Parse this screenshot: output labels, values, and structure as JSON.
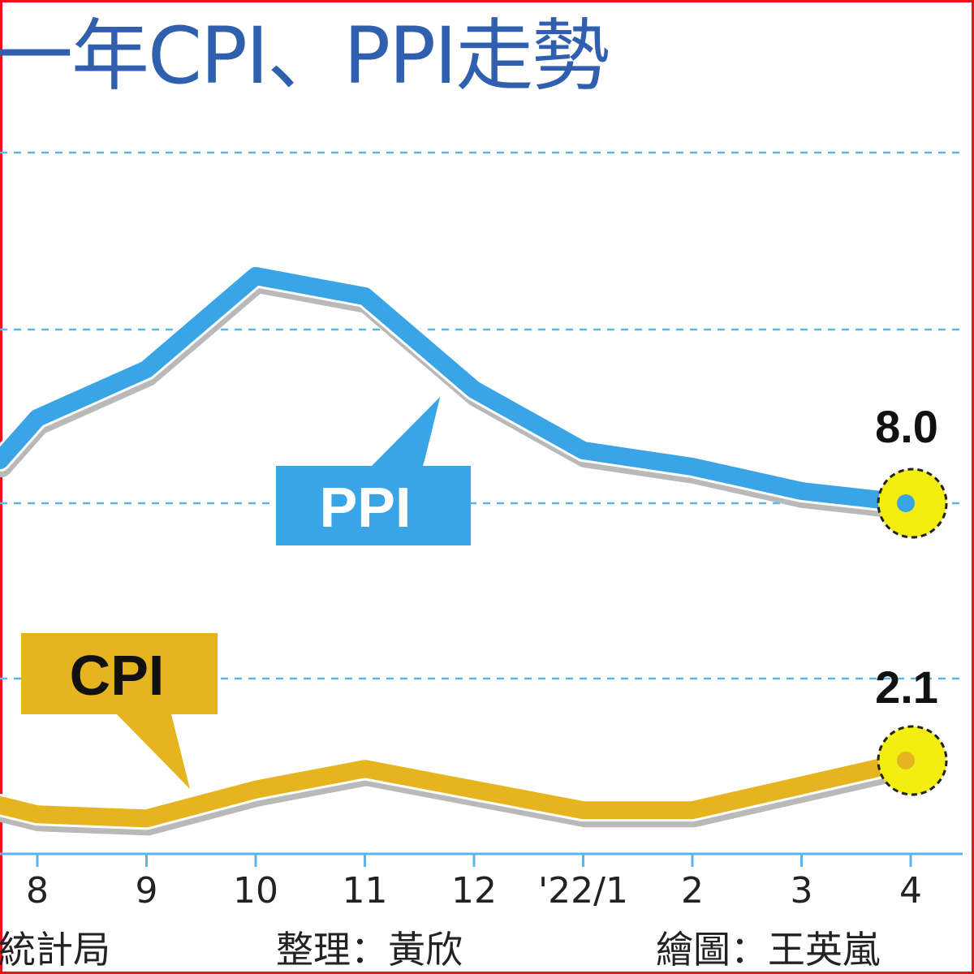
{
  "title": "一年CPI、PPI走勢",
  "chart_data": {
    "type": "line",
    "categories": [
      "8",
      "9",
      "10",
      "11",
      "12",
      "'22/1",
      "2",
      "3",
      "4"
    ],
    "series": [
      {
        "name": "PPI",
        "values": [
          10.1,
          11.3,
          13.6,
          13.1,
          10.8,
          9.3,
          8.9,
          8.3,
          8.0
        ]
      },
      {
        "name": "CPI",
        "values": [
          0.8,
          0.7,
          1.4,
          1.9,
          1.4,
          0.9,
          0.9,
          1.5,
          2.1
        ]
      }
    ],
    "end_labels": [
      "8.0",
      "2.1"
    ],
    "colors": {
      "PPI": "#3aa5e6",
      "CPI": "#e5b41e",
      "highlight": "#f3ee10",
      "grid": "#5cb4e8"
    },
    "grid": true,
    "legend": "inline-callouts"
  },
  "footer": {
    "source": "統計局",
    "editor": "整理：黃欣",
    "artist": "繪圖：王英嵐"
  }
}
